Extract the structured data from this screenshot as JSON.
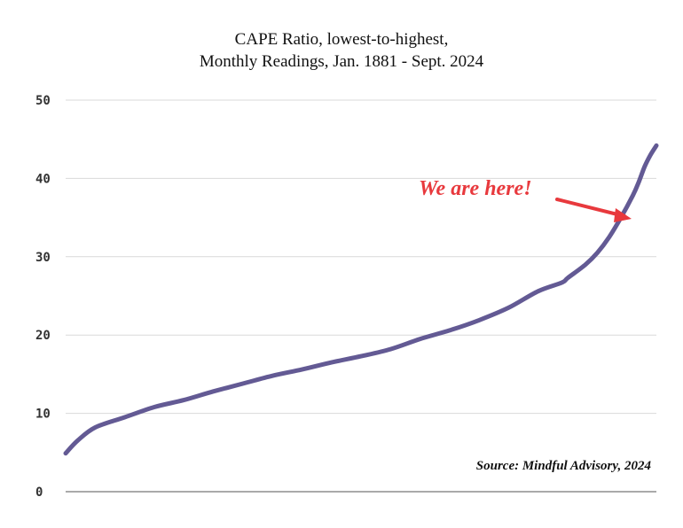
{
  "chart_data": {
    "type": "line",
    "title_line1": "CAPE Ratio, lowest-to-highest,",
    "title_line2": "Monthly Readings, Jan. 1881 - Sept. 2024",
    "xlabel": "",
    "ylabel": "",
    "ylim": [
      0,
      50
    ],
    "yticks": [
      "0",
      "10",
      "20",
      "30",
      "40",
      "50"
    ],
    "grid": true,
    "annotation": "We are here!",
    "source": "Source: Mindful Advisory, 2024",
    "line_color": "#635a94",
    "annotation_color": "#e8393d",
    "x": [
      0,
      0.02,
      0.05,
      0.1,
      0.15,
      0.2,
      0.25,
      0.3,
      0.35,
      0.4,
      0.45,
      0.5,
      0.55,
      0.6,
      0.65,
      0.7,
      0.75,
      0.8,
      0.84,
      0.85,
      0.88,
      0.9,
      0.92,
      0.94,
      0.96,
      0.97,
      0.98,
      0.99,
      1.0
    ],
    "values": [
      4.9,
      6.5,
      8.2,
      9.5,
      10.8,
      11.7,
      12.8,
      13.8,
      14.8,
      15.6,
      16.5,
      17.3,
      18.2,
      19.5,
      20.6,
      21.9,
      23.5,
      25.6,
      26.7,
      27.3,
      29.0,
      30.5,
      32.5,
      35.0,
      37.8,
      39.5,
      41.5,
      43.0,
      44.2
    ]
  }
}
